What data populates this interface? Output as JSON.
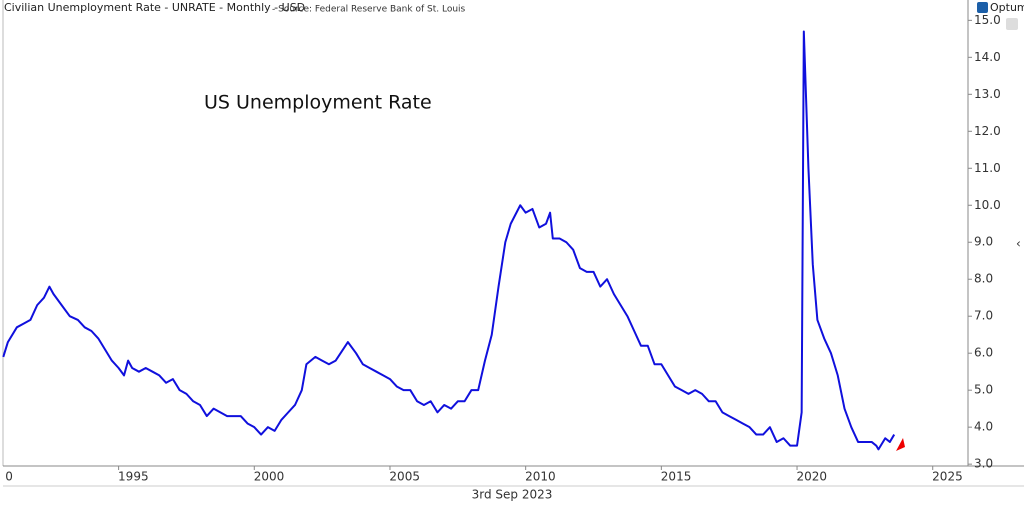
{
  "header": {
    "title": "Civilian Unemployment Rate - UNRATE - Monthly - USD",
    "source": " - Source: Federal Reserve Bank of St. Louis",
    "brand": "Optuma"
  },
  "chart_data": {
    "type": "line",
    "annotation": "US Unemployment Rate",
    "date_label": "3rd Sep 2023",
    "x": [
      1990.75,
      1990.92,
      1991.25,
      1991.5,
      1991.75,
      1992.0,
      1992.25,
      1992.45,
      1992.6,
      1992.9,
      1993.2,
      1993.5,
      1993.75,
      1994.0,
      1994.25,
      1994.5,
      1994.75,
      1995.0,
      1995.2,
      1995.35,
      1995.5,
      1995.75,
      1996.0,
      1996.25,
      1996.5,
      1996.75,
      1997.0,
      1997.25,
      1997.5,
      1997.75,
      1998.0,
      1998.25,
      1998.5,
      1998.75,
      1999.0,
      1999.25,
      1999.5,
      1999.75,
      2000.0,
      2000.25,
      2000.5,
      2000.75,
      2001.0,
      2001.25,
      2001.5,
      2001.75,
      2001.92,
      2002.25,
      2002.5,
      2002.75,
      2003.0,
      2003.45,
      2003.75,
      2004.0,
      2004.25,
      2004.5,
      2004.75,
      2005.0,
      2005.25,
      2005.5,
      2005.75,
      2006.0,
      2006.25,
      2006.5,
      2006.75,
      2007.0,
      2007.25,
      2007.5,
      2007.75,
      2008.0,
      2008.25,
      2008.5,
      2008.75,
      2009.0,
      2009.25,
      2009.45,
      2009.8,
      2010.0,
      2010.25,
      2010.5,
      2010.75,
      2010.9,
      2011.0,
      2011.25,
      2011.5,
      2011.75,
      2012.0,
      2012.25,
      2012.5,
      2012.75,
      2013.0,
      2013.25,
      2013.5,
      2013.75,
      2014.0,
      2014.25,
      2014.5,
      2014.75,
      2015.0,
      2015.25,
      2015.5,
      2015.75,
      2016.0,
      2016.25,
      2016.5,
      2016.75,
      2017.0,
      2017.25,
      2017.5,
      2017.75,
      2018.0,
      2018.25,
      2018.5,
      2018.75,
      2019.0,
      2019.25,
      2019.5,
      2019.75,
      2020.0,
      2020.17,
      2020.25,
      2020.42,
      2020.58,
      2020.75,
      2021.0,
      2021.25,
      2021.5,
      2021.75,
      2022.0,
      2022.25,
      2022.5,
      2022.75,
      2022.92,
      2023.0,
      2023.25,
      2023.42,
      2023.58
    ],
    "series": [
      {
        "name": "UNRATE",
        "color": "#1010dd",
        "values": [
          5.9,
          6.3,
          6.7,
          6.8,
          6.9,
          7.3,
          7.5,
          7.8,
          7.6,
          7.3,
          7.0,
          6.9,
          6.7,
          6.6,
          6.4,
          6.1,
          5.8,
          5.6,
          5.4,
          5.8,
          5.6,
          5.5,
          5.6,
          5.5,
          5.4,
          5.2,
          5.3,
          5.0,
          4.9,
          4.7,
          4.6,
          4.3,
          4.5,
          4.4,
          4.3,
          4.3,
          4.3,
          4.1,
          4.0,
          3.8,
          4.0,
          3.9,
          4.2,
          4.4,
          4.6,
          5.0,
          5.7,
          5.9,
          5.8,
          5.7,
          5.8,
          6.3,
          6.0,
          5.7,
          5.6,
          5.5,
          5.4,
          5.3,
          5.1,
          5.0,
          5.0,
          4.7,
          4.6,
          4.7,
          4.4,
          4.6,
          4.5,
          4.7,
          4.7,
          5.0,
          5.0,
          5.8,
          6.5,
          7.8,
          9.0,
          9.5,
          10.0,
          9.8,
          9.9,
          9.4,
          9.5,
          9.8,
          9.1,
          9.1,
          9.0,
          8.8,
          8.3,
          8.2,
          8.2,
          7.8,
          8.0,
          7.6,
          7.3,
          7.0,
          6.6,
          6.2,
          6.2,
          5.7,
          5.7,
          5.4,
          5.1,
          5.0,
          4.9,
          5.0,
          4.9,
          4.7,
          4.7,
          4.4,
          4.3,
          4.2,
          4.1,
          4.0,
          3.8,
          3.8,
          4.0,
          3.6,
          3.7,
          3.5,
          3.5,
          4.4,
          14.7,
          11.0,
          8.4,
          6.9,
          6.4,
          6.0,
          5.4,
          4.5,
          4.0,
          3.6,
          3.6,
          3.6,
          3.5,
          3.4,
          3.7,
          3.6,
          3.8
        ]
      }
    ],
    "xlim": [
      1990.74,
      2026.3
    ],
    "xticks": [
      {
        "value": 1990,
        "label": "0"
      },
      1995,
      2000,
      2005,
      2010,
      2015,
      2020,
      2025
    ],
    "ylim": [
      2.95,
      15.55
    ],
    "yticks": [
      {
        "value": 3,
        "label": "3.0"
      },
      {
        "value": 4,
        "label": "4.0"
      },
      {
        "value": 5,
        "label": "5.0"
      },
      {
        "value": 6,
        "label": "6.0"
      },
      {
        "value": 7,
        "label": "7.0"
      },
      {
        "value": 8,
        "label": "8.0"
      },
      {
        "value": 9,
        "label": "9.0"
      },
      {
        "value": 10,
        "label": "10.0"
      },
      {
        "value": 11,
        "label": "11.0"
      },
      {
        "value": 12,
        "label": "12.0"
      },
      {
        "value": 13,
        "label": "13.0"
      },
      {
        "value": 14,
        "label": "14.0"
      },
      {
        "value": 15,
        "label": "15.0"
      }
    ],
    "grid": false
  }
}
